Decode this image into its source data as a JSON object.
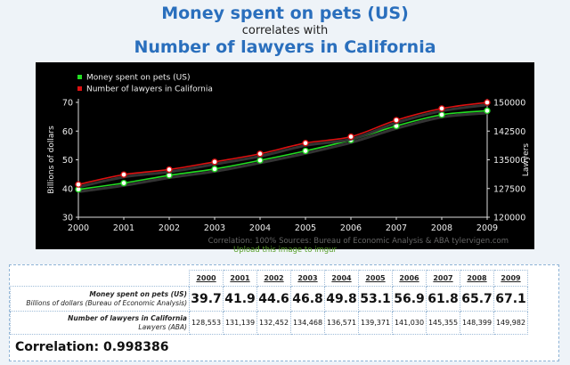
{
  "header": {
    "title_series1": "Money spent on pets (US)",
    "connector": "correlates with",
    "title_series2": "Number of lawyers in California"
  },
  "chart_data": {
    "type": "line",
    "x": [
      2000,
      2001,
      2002,
      2003,
      2004,
      2005,
      2006,
      2007,
      2008,
      2009
    ],
    "xlim": [
      2000,
      2009
    ],
    "ylabel": "Billions of dollars",
    "ylim": [
      30,
      70
    ],
    "yticks": [
      30,
      40,
      50,
      60,
      70
    ],
    "y2label": "Lawyers",
    "y2lim": [
      120000,
      150000
    ],
    "y2ticks": [
      120000,
      127500,
      135000,
      142500,
      150000
    ],
    "legend_position": "top-left",
    "grid": false,
    "series": [
      {
        "name": "Money spent on pets (US)",
        "axis": "left",
        "color": "#22dd22",
        "values": [
          39.7,
          41.9,
          44.6,
          46.8,
          49.8,
          53.1,
          56.9,
          61.8,
          65.7,
          67.1
        ]
      },
      {
        "name": "Number of lawyers in California",
        "axis": "right",
        "color": "#dd1111",
        "values": [
          128553,
          131139,
          132452,
          134468,
          136571,
          139371,
          141030,
          145355,
          148399,
          149982
        ]
      }
    ],
    "footer": "Correlation: 100%    Sources: Bureau of Economic Analysis & ABA   tylervigen.com"
  },
  "upload_link": "Upload this image to imgur",
  "table": {
    "years": [
      "2000",
      "2001",
      "2002",
      "2003",
      "2004",
      "2005",
      "2006",
      "2007",
      "2008",
      "2009"
    ],
    "row1_title": "Money spent on pets (US)",
    "row1_sub": "Billions of dollars (Bureau of Economic Analysis)",
    "row1_values": [
      "39.7",
      "41.9",
      "44.6",
      "46.8",
      "49.8",
      "53.1",
      "56.9",
      "61.8",
      "65.7",
      "67.1"
    ],
    "row2_title": "Number of lawyers in California",
    "row2_sub": "Lawyers (ABA)",
    "row2_values": [
      "128,553",
      "131,139",
      "132,452",
      "134,468",
      "136,571",
      "139,371",
      "141,030",
      "145,355",
      "148,399",
      "149,982"
    ]
  },
  "correlation": "Correlation: 0.998386"
}
